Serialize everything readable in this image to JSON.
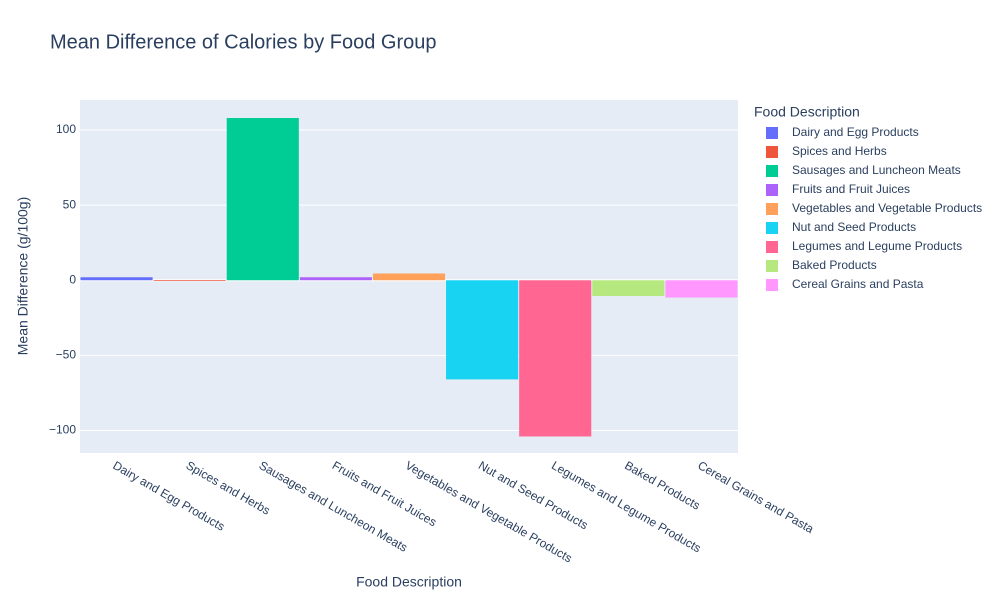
{
  "chart_data": {
    "type": "bar",
    "title": "Mean Difference of Calories by Food Group",
    "x_label": "Food Description",
    "y_label": "Mean Difference (g/100g)",
    "legend_title": "Food Description",
    "categories": [
      "Dairy and Egg Products",
      "Spices and Herbs",
      "Sausages and Luncheon Meats",
      "Fruits and Fruit Juices",
      "Vegetables and Vegetable Products",
      "Nut and Seed Products",
      "Legumes and Legume Products",
      "Baked Products",
      "Cereal Grains and Pasta"
    ],
    "series": [
      {
        "name": "Dairy and Egg Products",
        "color": "#636efa",
        "values": [
          2,
          null,
          null,
          null,
          null,
          null,
          null,
          null,
          null
        ]
      },
      {
        "name": "Spices and Herbs",
        "color": "#EF553B",
        "values": [
          null,
          -0.5,
          null,
          null,
          null,
          null,
          null,
          null,
          null
        ]
      },
      {
        "name": "Sausages and Luncheon Meats",
        "color": "#00cc96",
        "values": [
          null,
          null,
          108,
          null,
          null,
          null,
          null,
          null,
          null
        ]
      },
      {
        "name": "Fruits and Fruit Juices",
        "color": "#ab63fa",
        "values": [
          null,
          null,
          null,
          2,
          null,
          null,
          null,
          null,
          null
        ]
      },
      {
        "name": "Vegetables and Vegetable Products",
        "color": "#FFA15A",
        "values": [
          null,
          null,
          null,
          null,
          4.5,
          null,
          null,
          null,
          null
        ]
      },
      {
        "name": "Nut and Seed Products",
        "color": "#19d3f3",
        "values": [
          null,
          null,
          null,
          null,
          null,
          -66,
          null,
          null,
          null
        ]
      },
      {
        "name": "Legumes and Legume Products",
        "color": "#FF6692",
        "values": [
          null,
          null,
          null,
          null,
          null,
          null,
          -104,
          null,
          null
        ]
      },
      {
        "name": "Baked Products",
        "color": "#B6E880",
        "values": [
          null,
          null,
          null,
          null,
          null,
          null,
          null,
          -10.5,
          null
        ]
      },
      {
        "name": "Cereal Grains and Pasta",
        "color": "#FF97FF",
        "values": [
          null,
          null,
          null,
          null,
          null,
          null,
          null,
          null,
          -11.5
        ]
      }
    ],
    "ylim": [
      -115,
      120
    ],
    "yticks": [
      {
        "value": -100,
        "label": "−100"
      },
      {
        "value": -50,
        "label": "−50"
      },
      0,
      50,
      100
    ],
    "grid": true,
    "legend": "right"
  }
}
